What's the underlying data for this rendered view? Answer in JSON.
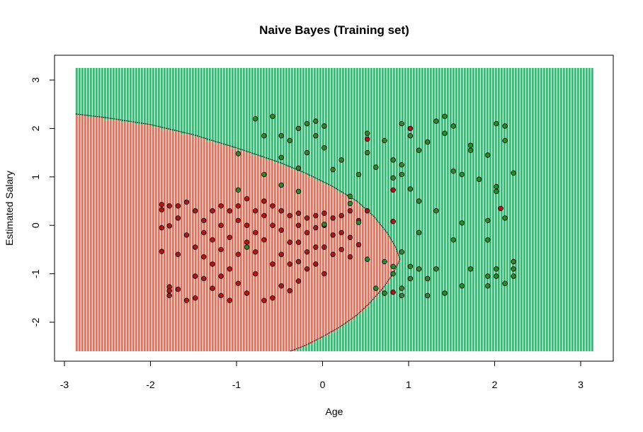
{
  "chart_data": {
    "type": "scatter",
    "title": "Naive Bayes (Training set)",
    "xlabel": "Age",
    "ylabel": "Estimated Salary",
    "xlim": [
      -2.9,
      3.25
    ],
    "ylim": [
      -2.6,
      3.25
    ],
    "x_ticks": [
      "-3",
      "-2",
      "-1",
      "0",
      "1",
      "2",
      "3"
    ],
    "x_tick_values": [
      -3,
      -2,
      -1,
      0,
      1,
      2,
      3
    ],
    "y_ticks": [
      "-2",
      "-1",
      "0",
      "1",
      "2",
      "3"
    ],
    "y_tick_values": [
      -2,
      -1,
      0,
      1,
      2,
      3
    ],
    "grid": false,
    "colors": {
      "region_0": "#fa6a50",
      "region_1": "#1ec86e",
      "point_0": "#b21515",
      "point_1": "#2a8a2a",
      "point_border": "#000000"
    },
    "decision_boundary": {
      "x": [
        -2.87,
        -2.5,
        -2.0,
        -1.5,
        -1.0,
        -0.5,
        -0.2,
        0.1,
        0.4,
        0.6,
        0.75,
        0.85,
        0.9,
        0.82,
        0.7,
        0.55,
        0.4,
        0.2,
        0.0,
        -0.2,
        -0.38
      ],
      "y": [
        2.3,
        2.22,
        2.08,
        1.87,
        1.6,
        1.3,
        1.08,
        0.82,
        0.5,
        0.18,
        -0.15,
        -0.45,
        -0.7,
        -1.0,
        -1.3,
        -1.6,
        -1.85,
        -2.1,
        -2.3,
        -2.48,
        -2.6
      ]
    },
    "series": [
      {
        "class": 0,
        "points": [
          [
            -1.87,
            0.43
          ],
          [
            -1.87,
            0.32
          ],
          [
            -1.87,
            -0.05
          ],
          [
            -1.87,
            -0.54
          ],
          [
            -1.78,
            0.4
          ],
          [
            -1.78,
            -0.01
          ],
          [
            -1.78,
            -1.27
          ],
          [
            -1.78,
            -1.35
          ],
          [
            -1.78,
            -1.45
          ],
          [
            -1.68,
            0.4
          ],
          [
            -1.68,
            0.15
          ],
          [
            -1.68,
            -0.6
          ],
          [
            -1.68,
            -1.32
          ],
          [
            -1.58,
            0.48
          ],
          [
            -1.58,
            -0.2
          ],
          [
            -1.58,
            -1.55
          ],
          [
            -1.48,
            0.3
          ],
          [
            -1.48,
            -0.45
          ],
          [
            -1.48,
            -1.05
          ],
          [
            -1.48,
            -1.5
          ],
          [
            -1.38,
            0.1
          ],
          [
            -1.38,
            -0.15
          ],
          [
            -1.38,
            -0.65
          ],
          [
            -1.38,
            -1.1
          ],
          [
            -1.28,
            0.3
          ],
          [
            -1.28,
            -0.3
          ],
          [
            -1.28,
            -0.8
          ],
          [
            -1.28,
            -1.3
          ],
          [
            -1.18,
            0.4
          ],
          [
            -1.18,
            0.0
          ],
          [
            -1.18,
            -0.5
          ],
          [
            -1.18,
            -1.05
          ],
          [
            -1.18,
            -1.45
          ],
          [
            -1.08,
            0.3
          ],
          [
            -1.08,
            -0.25
          ],
          [
            -1.08,
            -0.9
          ],
          [
            -1.08,
            -1.55
          ],
          [
            -0.98,
            0.4
          ],
          [
            -0.98,
            0.1
          ],
          [
            -0.98,
            -0.6
          ],
          [
            -0.98,
            -1.2
          ],
          [
            -0.88,
            0.55
          ],
          [
            -0.88,
            0.0
          ],
          [
            -0.88,
            -0.35
          ],
          [
            -0.88,
            -1.4
          ],
          [
            -0.78,
            0.3
          ],
          [
            -0.78,
            -0.15
          ],
          [
            -0.78,
            -0.55
          ],
          [
            -0.78,
            -1.0
          ],
          [
            -0.68,
            0.5
          ],
          [
            -0.68,
            0.2
          ],
          [
            -0.68,
            -0.3
          ],
          [
            -0.68,
            -1.55
          ],
          [
            -0.58,
            0.4
          ],
          [
            -0.58,
            0.0
          ],
          [
            -0.58,
            -0.8
          ],
          [
            -0.58,
            -1.5
          ],
          [
            -0.48,
            0.3
          ],
          [
            -0.48,
            -0.1
          ],
          [
            -0.48,
            -0.6
          ],
          [
            -0.48,
            -1.25
          ],
          [
            -0.38,
            0.2
          ],
          [
            -0.38,
            -0.35
          ],
          [
            -0.38,
            -0.8
          ],
          [
            -0.38,
            -1.35
          ],
          [
            -0.28,
            0.25
          ],
          [
            -0.28,
            0.0
          ],
          [
            -0.28,
            -0.35
          ],
          [
            -0.28,
            -0.75
          ],
          [
            -0.28,
            -1.15
          ],
          [
            -0.18,
            0.15
          ],
          [
            -0.18,
            -0.15
          ],
          [
            -0.18,
            -0.55
          ],
          [
            -0.18,
            -0.9
          ],
          [
            -0.08,
            0.2
          ],
          [
            -0.08,
            -0.05
          ],
          [
            -0.08,
            -0.45
          ],
          [
            -0.08,
            -0.8
          ],
          [
            0.02,
            0.25
          ],
          [
            0.02,
            0.0
          ],
          [
            0.02,
            -0.45
          ],
          [
            0.02,
            -1.0
          ],
          [
            0.12,
            0.15
          ],
          [
            0.12,
            -0.2
          ],
          [
            0.12,
            -0.6
          ],
          [
            0.22,
            0.2
          ],
          [
            0.22,
            -0.15
          ],
          [
            0.22,
            -0.5
          ],
          [
            0.32,
            0.3
          ],
          [
            0.32,
            -0.25
          ],
          [
            0.32,
            -0.65
          ],
          [
            0.42,
            0.1
          ],
          [
            0.42,
            -0.4
          ],
          [
            0.52,
            0.3
          ],
          [
            0.52,
            1.78
          ],
          [
            0.82,
            0.73
          ],
          [
            0.82,
            0.08
          ],
          [
            0.82,
            -1.38
          ],
          [
            1.02,
            2.0
          ],
          [
            2.07,
            0.35
          ]
        ]
      },
      {
        "class": 1,
        "points": [
          [
            -0.98,
            1.48
          ],
          [
            -0.98,
            0.73
          ],
          [
            -0.78,
            2.2
          ],
          [
            -0.68,
            1.85
          ],
          [
            -0.68,
            1.05
          ],
          [
            -0.58,
            2.25
          ],
          [
            -0.48,
            1.85
          ],
          [
            -0.48,
            1.4
          ],
          [
            -0.48,
            0.83
          ],
          [
            -0.38,
            1.75
          ],
          [
            -0.28,
            2.0
          ],
          [
            -0.28,
            1.18
          ],
          [
            -0.28,
            0.7
          ],
          [
            -0.18,
            2.1
          ],
          [
            -0.18,
            1.5
          ],
          [
            -0.08,
            2.15
          ],
          [
            -0.08,
            1.85
          ],
          [
            0.02,
            2.05
          ],
          [
            0.02,
            1.6
          ],
          [
            0.12,
            1.15
          ],
          [
            0.22,
            1.35
          ],
          [
            0.32,
            0.6
          ],
          [
            0.42,
            1.05
          ],
          [
            0.52,
            1.5
          ],
          [
            0.52,
            1.9
          ],
          [
            0.62,
            1.2
          ],
          [
            0.72,
            1.75
          ],
          [
            0.82,
            1.35
          ],
          [
            0.82,
            0.98
          ],
          [
            0.92,
            1.25
          ],
          [
            0.92,
            1.05
          ],
          [
            0.92,
            2.1
          ],
          [
            1.02,
            1.85
          ],
          [
            1.02,
            0.75
          ],
          [
            1.12,
            1.55
          ],
          [
            1.22,
            1.72
          ],
          [
            1.32,
            2.15
          ],
          [
            1.42,
            2.25
          ],
          [
            1.42,
            1.9
          ],
          [
            1.52,
            2.05
          ],
          [
            1.62,
            1.05
          ],
          [
            1.72,
            1.65
          ],
          [
            1.72,
            1.55
          ],
          [
            1.82,
            0.95
          ],
          [
            1.92,
            1.45
          ],
          [
            1.92,
            0.1
          ],
          [
            2.02,
            2.1
          ],
          [
            2.02,
            0.8
          ],
          [
            2.02,
            0.7
          ],
          [
            2.12,
            2.05
          ],
          [
            2.12,
            1.75
          ],
          [
            2.12,
            0.15
          ],
          [
            2.22,
            1.08
          ],
          [
            2.22,
            -0.75
          ],
          [
            2.22,
            -0.9
          ],
          [
            2.22,
            -1.05
          ],
          [
            2.12,
            -1.2
          ],
          [
            2.02,
            -0.9
          ],
          [
            1.92,
            -1.05
          ],
          [
            1.92,
            -1.25
          ],
          [
            1.72,
            -0.9
          ],
          [
            1.62,
            -1.25
          ],
          [
            1.52,
            -0.3
          ],
          [
            1.42,
            -1.4
          ],
          [
            1.32,
            -0.9
          ],
          [
            1.22,
            -1.45
          ],
          [
            1.12,
            0.5
          ],
          [
            1.12,
            -0.15
          ],
          [
            1.12,
            -0.9
          ],
          [
            1.02,
            -0.85
          ],
          [
            1.02,
            -1.1
          ],
          [
            0.92,
            -1.3
          ],
          [
            0.92,
            -1.45
          ],
          [
            0.82,
            -0.85
          ],
          [
            0.82,
            -1.0
          ],
          [
            0.72,
            -0.75
          ],
          [
            0.72,
            -1.4
          ],
          [
            0.62,
            -1.3
          ],
          [
            0.92,
            -0.55
          ],
          [
            0.52,
            -0.7
          ],
          [
            0.42,
            0.06
          ],
          [
            0.32,
            0.45
          ],
          [
            0.02,
            0.02
          ],
          [
            -0.88,
            -0.45
          ],
          [
            1.32,
            0.3
          ],
          [
            1.22,
            -1.1
          ],
          [
            1.62,
            0.05
          ],
          [
            1.92,
            -0.3
          ],
          [
            2.02,
            -1.05
          ],
          [
            1.52,
            1.12
          ]
        ]
      }
    ]
  }
}
